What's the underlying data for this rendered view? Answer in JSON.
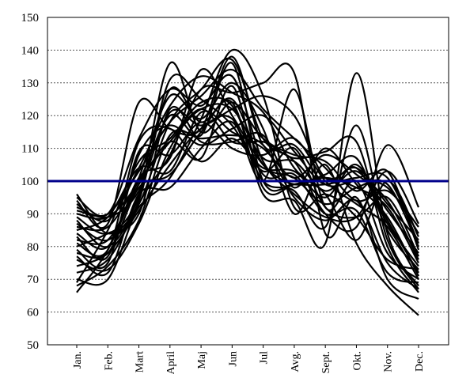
{
  "chart_data": {
    "type": "line",
    "title": "",
    "xlabel": "",
    "ylabel": "",
    "categories": [
      "Jan.",
      "Feb.",
      "Mart",
      "April",
      "Maj",
      "Jun",
      "Jul",
      "Avg.",
      "Sept.",
      "Okt.",
      "Nov.",
      "Dec."
    ],
    "ylim": [
      50,
      150
    ],
    "yticks": [
      50,
      60,
      70,
      80,
      90,
      100,
      110,
      120,
      130,
      140,
      150
    ],
    "grid": true,
    "reference_line": {
      "value": 100,
      "color": "#00008b"
    },
    "line_color": "#000000",
    "series": [
      {
        "values": [
          96,
          84,
          93,
          118,
          128,
          137,
          113,
          106,
          90,
          86,
          111,
          92
        ]
      },
      {
        "values": [
          95,
          90,
          113,
          128,
          123,
          132,
          106,
          96,
          89,
          89,
          103,
          87
        ]
      },
      {
        "values": [
          94,
          87,
          124,
          116,
          116,
          138,
          111,
          111,
          99,
          100,
          98,
          84
        ]
      },
      {
        "values": [
          93,
          88,
          104,
          123,
          132,
          127,
          121,
          104,
          96,
          82,
          100,
          83
        ]
      },
      {
        "values": [
          92,
          89,
          97,
          121,
          117,
          122,
          126,
          120,
          101,
          104,
          93,
          82
        ]
      },
      {
        "values": [
          91,
          90,
          103,
          118,
          126,
          134,
          122,
          113,
          104,
          94,
          97,
          86
        ]
      },
      {
        "values": [
          90,
          89,
          100,
          120,
          114,
          136,
          100,
          99,
          99,
          101,
          101,
          81
        ]
      },
      {
        "values": [
          89,
          84,
          95,
          128,
          118,
          125,
          105,
          101,
          93,
          98,
          99,
          80
        ]
      },
      {
        "values": [
          88,
          80,
          96,
          136,
          115,
          124,
          113,
          108,
          106,
          97,
          103,
          79
        ]
      },
      {
        "values": [
          87,
          82,
          94,
          131,
          125,
          117,
          103,
          110,
          92,
          89,
          95,
          77
        ]
      },
      {
        "values": [
          86,
          86,
          100,
          112,
          122,
          122,
          107,
          106,
          97,
          103,
          91,
          78
        ]
      },
      {
        "values": [
          85,
          89,
          104,
          103,
          121,
          115,
          110,
          101,
          108,
          102,
          94,
          76
        ]
      },
      {
        "values": [
          84,
          80,
          101,
          107,
          134,
          120,
          105,
          99,
          101,
          98,
          92,
          75
        ]
      },
      {
        "values": [
          83,
          77,
          108,
          117,
          111,
          116,
          120,
          109,
          99,
          104,
          87,
          74
        ]
      },
      {
        "values": [
          82,
          82,
          99,
          112,
          107,
          129,
          98,
          99,
          102,
          107,
          85,
          73
        ]
      },
      {
        "values": [
          81,
          79,
          112,
          116,
          106,
          113,
          104,
          103,
          95,
          105,
          88,
          72
        ]
      },
      {
        "values": [
          80,
          84,
          90,
          122,
          112,
          112,
          114,
          98,
          110,
          99,
          89,
          71
        ]
      },
      {
        "values": [
          79,
          75,
          109,
          108,
          118,
          110,
          108,
          113,
          100,
          93,
          86,
          70
        ]
      },
      {
        "values": [
          78,
          78,
          98,
          102,
          115,
          124,
          96,
          94,
          81,
          133,
          84,
          68
        ]
      },
      {
        "values": [
          77,
          72,
          96,
          98,
          110,
          118,
          100,
          97,
          86,
          117,
          82,
          67
        ]
      },
      {
        "values": [
          76,
          73,
          87,
          110,
          122,
          112,
          112,
          107,
          109,
          112,
          80,
          66
        ]
      },
      {
        "values": [
          74,
          78,
          91,
          105,
          116,
          119,
          100,
          128,
          92,
          100,
          78,
          70
        ]
      },
      {
        "values": [
          72,
          76,
          92,
          101,
          119,
          140,
          126,
          92,
          96,
          89,
          76,
          73
        ]
      },
      {
        "values": [
          70,
          70,
          93,
          108,
          128,
          127,
          130,
          133,
          84,
          95,
          70,
          64
        ]
      },
      {
        "values": [
          69,
          85,
          106,
          113,
          124,
          123,
          102,
          102,
          90,
          91,
          72,
          69
        ]
      },
      {
        "values": [
          68,
          74,
          88,
          114,
          113,
          114,
          111,
          95,
          88,
          94,
          75,
          67
        ]
      },
      {
        "values": [
          66,
          79,
          101,
          126,
          119,
          130,
          116,
          90,
          105,
          81,
          68,
          59
        ]
      }
    ]
  }
}
